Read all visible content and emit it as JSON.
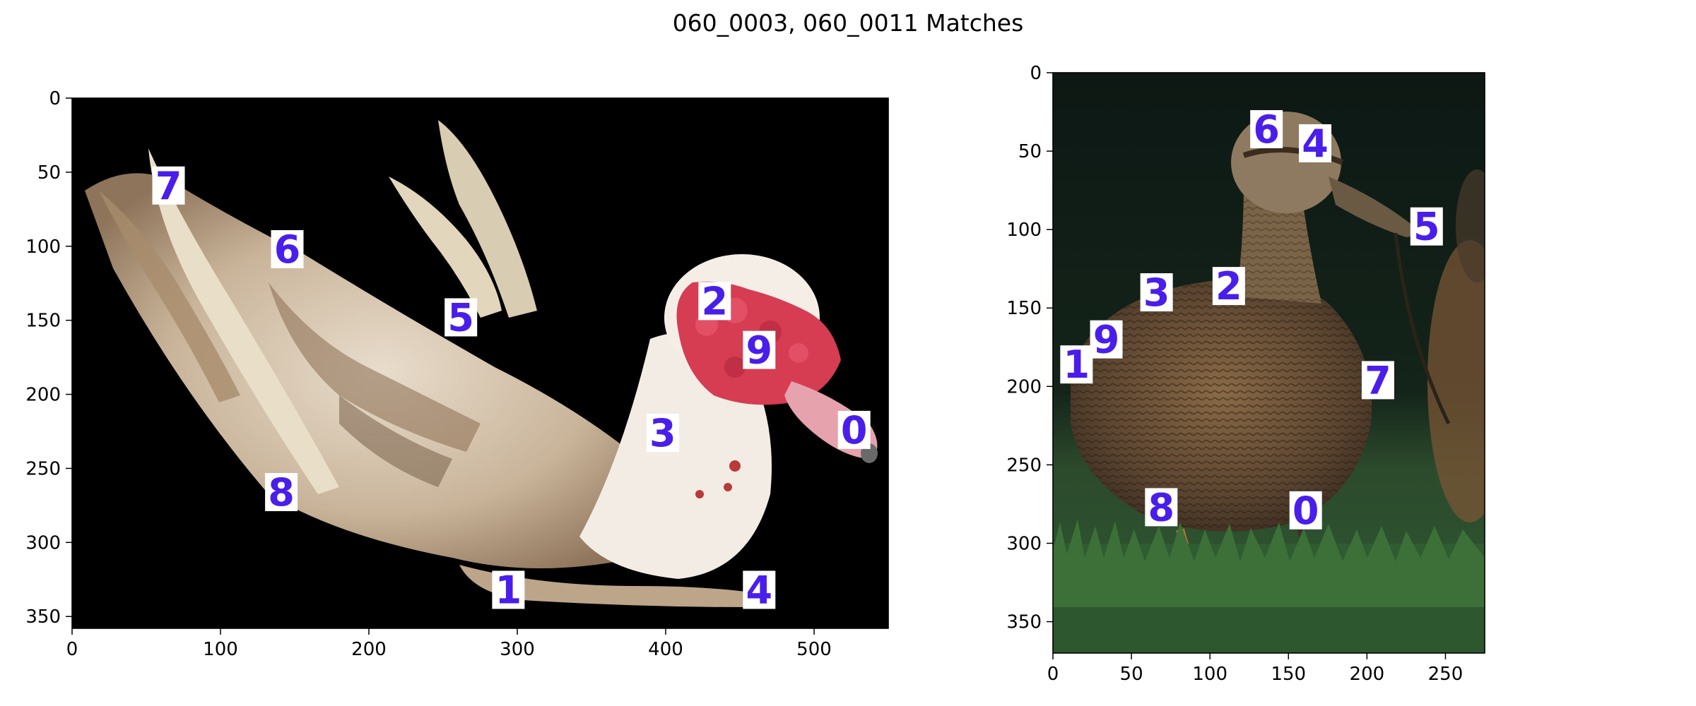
{
  "title": "060_0003, 060_0011 Matches",
  "panels": [
    {
      "id": "left",
      "image": "muscovy duck with red caruncled face on black background",
      "x_range": [
        0,
        550
      ],
      "y_range": [
        0,
        358
      ],
      "x_ticks": [
        0,
        100,
        200,
        300,
        400,
        500
      ],
      "y_ticks": [
        0,
        50,
        100,
        150,
        200,
        250,
        300,
        350
      ],
      "keypoints": [
        {
          "label": "0",
          "x": 527,
          "y": 224
        },
        {
          "label": "1",
          "x": 294,
          "y": 332
        },
        {
          "label": "2",
          "x": 433,
          "y": 137
        },
        {
          "label": "3",
          "x": 398,
          "y": 226
        },
        {
          "label": "4",
          "x": 463,
          "y": 332
        },
        {
          "label": "5",
          "x": 262,
          "y": 148
        },
        {
          "label": "6",
          "x": 145,
          "y": 102
        },
        {
          "label": "7",
          "x": 65,
          "y": 59
        },
        {
          "label": "8",
          "x": 141,
          "y": 266
        },
        {
          "label": "9",
          "x": 463,
          "y": 170
        }
      ]
    },
    {
      "id": "right",
      "image": "female mallard duck standing in grass at night",
      "x_range": [
        0,
        275
      ],
      "y_range": [
        0,
        370
      ],
      "x_ticks": [
        0,
        50,
        100,
        150,
        200,
        250
      ],
      "y_ticks": [
        0,
        50,
        100,
        150,
        200,
        250,
        300,
        350
      ],
      "keypoints": [
        {
          "label": "0",
          "x": 161,
          "y": 279
        },
        {
          "label": "1",
          "x": 15,
          "y": 186
        },
        {
          "label": "2",
          "x": 112,
          "y": 136
        },
        {
          "label": "3",
          "x": 66,
          "y": 140
        },
        {
          "label": "4",
          "x": 167,
          "y": 45
        },
        {
          "label": "5",
          "x": 238,
          "y": 98
        },
        {
          "label": "6",
          "x": 136,
          "y": 36
        },
        {
          "label": "7",
          "x": 207,
          "y": 196
        },
        {
          "label": "8",
          "x": 69,
          "y": 277
        },
        {
          "label": "9",
          "x": 34,
          "y": 170
        }
      ]
    }
  ]
}
